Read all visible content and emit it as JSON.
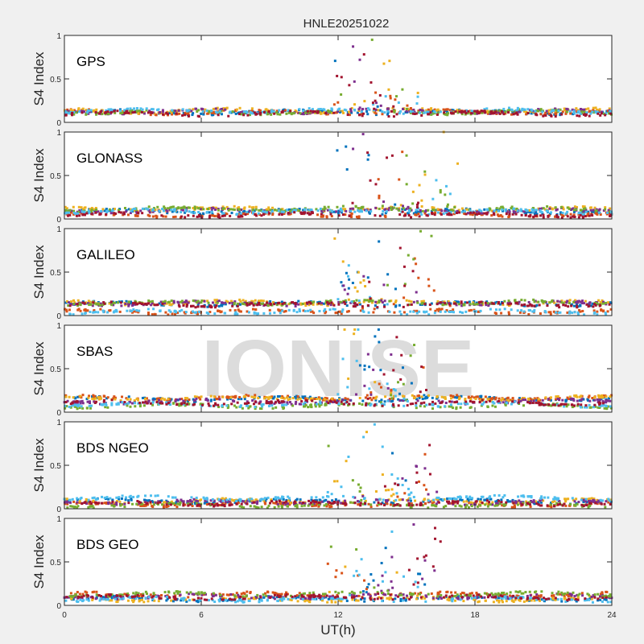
{
  "chart_data": {
    "type": "scatter",
    "title": "HNLE20251022",
    "xlabel": "UT(h)",
    "ylabel": "S4 Index",
    "xlim": [
      0,
      24
    ],
    "ylim": [
      0,
      1
    ],
    "xticks": [
      "0",
      "6",
      "12",
      "18",
      "24"
    ],
    "yticks": [
      "0",
      "0.5",
      "1"
    ],
    "watermark": "IONISE",
    "series_colors": [
      "#0072BD",
      "#D95319",
      "#EDB120",
      "#7E2F8E",
      "#77AC30",
      "#4DBEEE",
      "#A2142F"
    ],
    "panels": [
      {
        "label": "GPS",
        "quiet_s4": [
          0.05,
          0.15
        ],
        "active_window_h": [
          11.8,
          15.5
        ],
        "peak_s4": 0.95
      },
      {
        "label": "GLONASS",
        "quiet_s4": [
          0.03,
          0.12
        ],
        "active_window_h": [
          11.9,
          17.5
        ],
        "peak_s4": 1.0
      },
      {
        "label": "GALILEO",
        "quiet_s4": [
          0.04,
          0.15
        ],
        "active_window_h": [
          11.8,
          17.0
        ],
        "peak_s4": 0.97
      },
      {
        "label": "SBAS",
        "quiet_s4": [
          0.07,
          0.17
        ],
        "active_window_h": [
          11.9,
          16.5
        ],
        "peak_s4": 0.95
      },
      {
        "label": "BDS NGEO",
        "quiet_s4": [
          0.04,
          0.14
        ],
        "active_window_h": [
          11.5,
          16.7
        ],
        "peak_s4": 0.97
      },
      {
        "label": "BDS GEO",
        "quiet_s4": [
          0.05,
          0.14
        ],
        "active_window_h": [
          11.5,
          16.5
        ],
        "peak_s4": 0.93
      }
    ]
  }
}
